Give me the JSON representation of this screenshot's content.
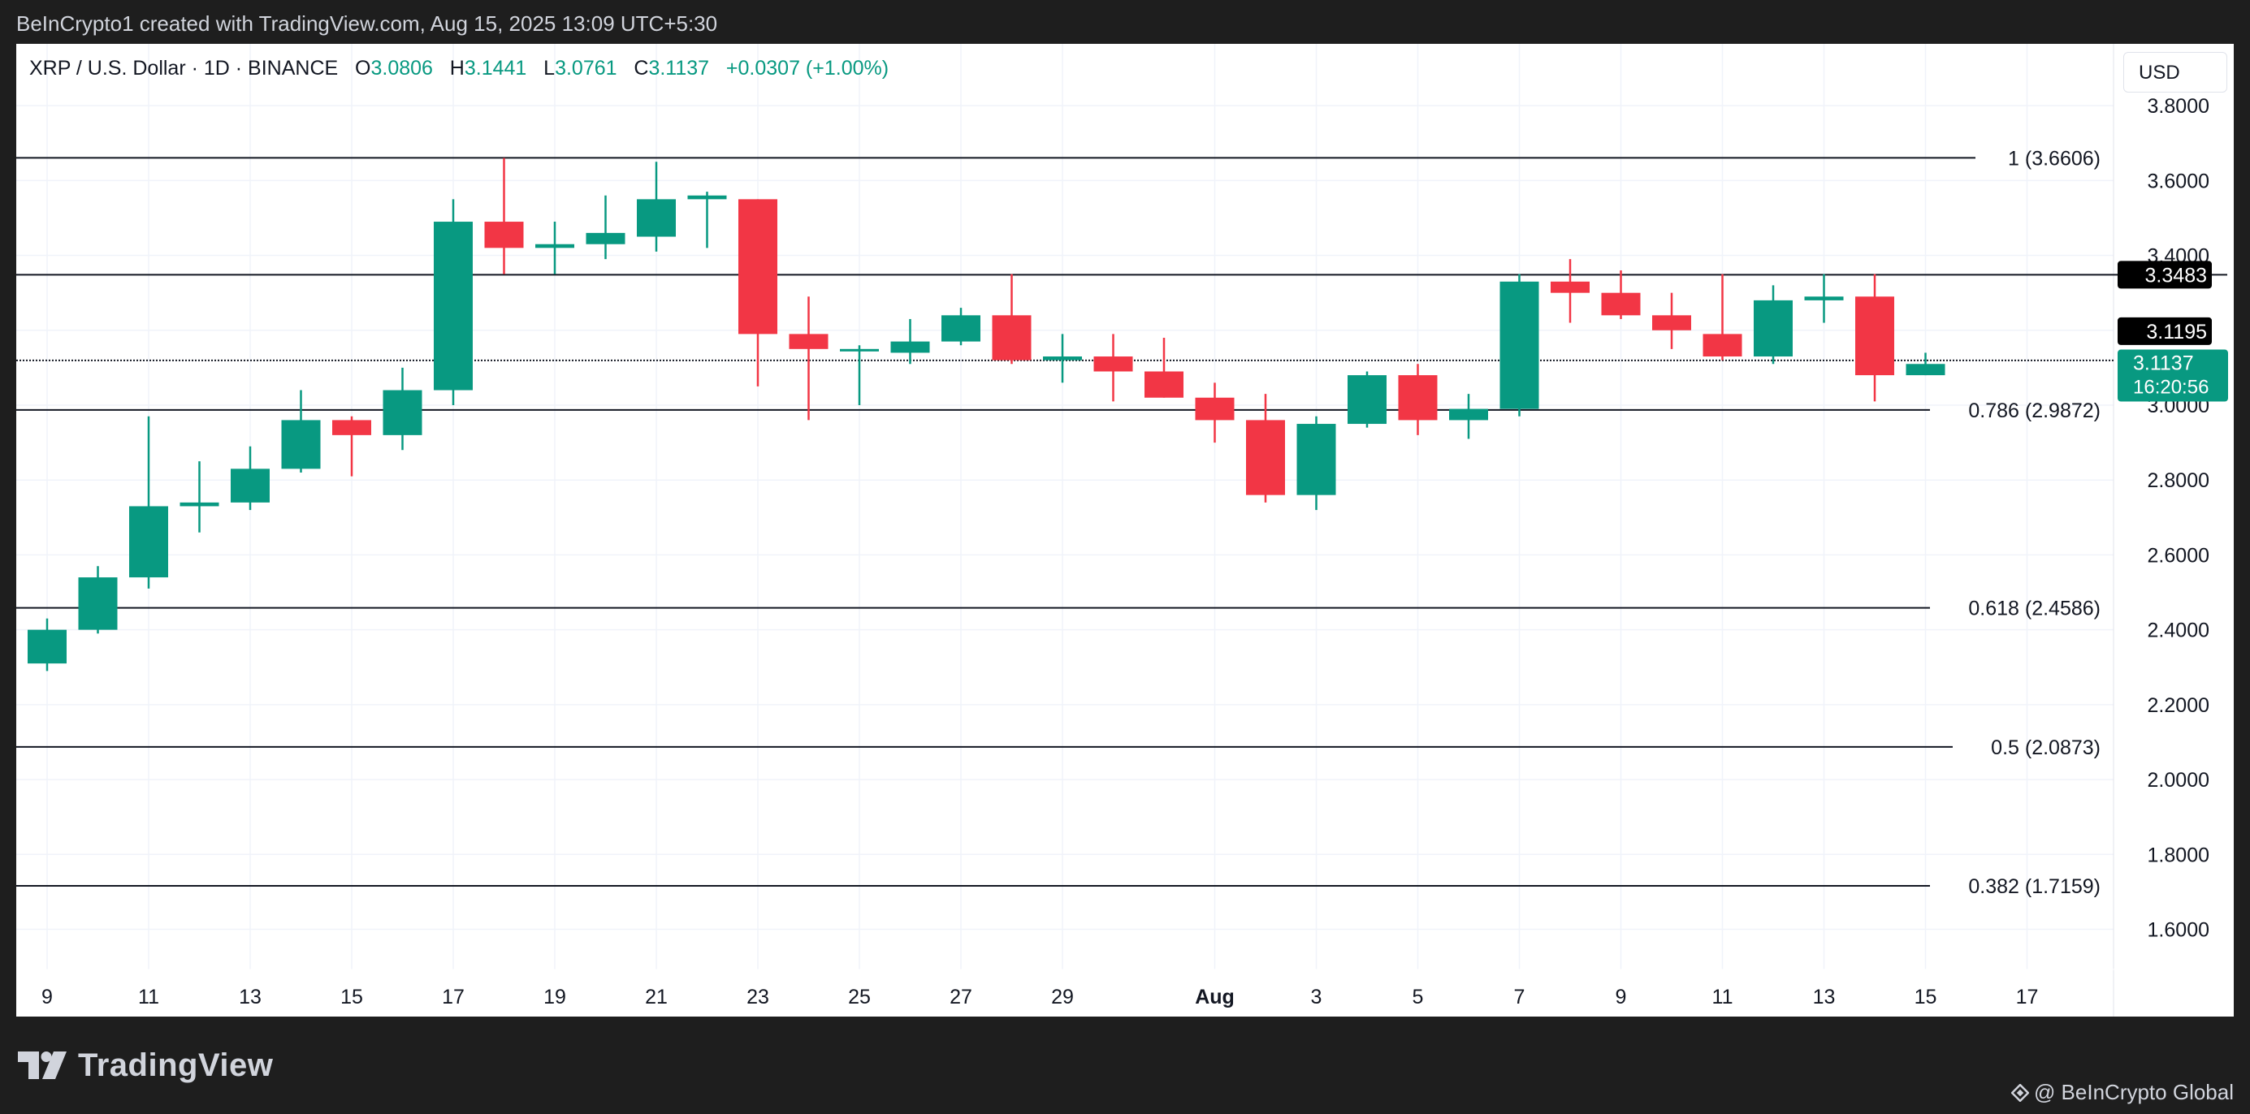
{
  "header": {
    "attribution": "BeInCrypto1 created with TradingView.com, Aug 15, 2025 13:09 UTC+5:30"
  },
  "legend": {
    "symbol": "XRP / U.S. Dollar · 1D · BINANCE",
    "open_key": "O",
    "open": "3.0806",
    "high_key": "H",
    "high": "3.1441",
    "low_key": "L",
    "low": "3.0761",
    "close_key": "C",
    "close": "3.1137",
    "change": "+0.0307 (+1.00%)"
  },
  "currency": "USD",
  "footer": {
    "brand": "TradingView",
    "credit": "@ BeInCrypto Global"
  },
  "colors": {
    "up": "#089981",
    "down": "#f23645",
    "level_line": "#131722",
    "grid": "#f0f3fa",
    "text": "#131722",
    "price_tag_bg": "#089981",
    "label_tag_bg": "#000000"
  },
  "chart_data": {
    "type": "candlestick",
    "y_axis": {
      "ylim": [
        1.51,
        3.9
      ],
      "ticks": [
        1.6,
        1.8,
        2.0,
        2.2,
        2.4,
        2.6,
        2.8,
        3.0,
        3.2,
        3.4,
        3.6,
        3.8
      ],
      "tick_labels": [
        "1.6000",
        "1.8000",
        "2.0000",
        "2.2000",
        "2.4000",
        "2.6000",
        "2.8000",
        "3.0000",
        "3.2000",
        "3.4000",
        "3.6000",
        "3.8000"
      ]
    },
    "x_axis": {
      "ticks": [
        {
          "index": 0,
          "label": "9"
        },
        {
          "index": 2,
          "label": "11"
        },
        {
          "index": 4,
          "label": "13"
        },
        {
          "index": 6,
          "label": "15"
        },
        {
          "index": 8,
          "label": "17"
        },
        {
          "index": 10,
          "label": "19"
        },
        {
          "index": 12,
          "label": "21"
        },
        {
          "index": 14,
          "label": "23"
        },
        {
          "index": 16,
          "label": "25"
        },
        {
          "index": 18,
          "label": "27"
        },
        {
          "index": 20,
          "label": "29"
        },
        {
          "index": 23,
          "label": "Aug"
        },
        {
          "index": 25,
          "label": "3"
        },
        {
          "index": 27,
          "label": "5"
        },
        {
          "index": 29,
          "label": "7"
        },
        {
          "index": 31,
          "label": "9"
        },
        {
          "index": 33,
          "label": "11"
        },
        {
          "index": 35,
          "label": "13"
        },
        {
          "index": 37,
          "label": "15"
        },
        {
          "index": 39,
          "label": "17"
        }
      ],
      "bold_labels": [
        "Aug"
      ]
    },
    "candles": [
      {
        "o": 2.31,
        "h": 2.43,
        "l": 2.29,
        "c": 2.4
      },
      {
        "o": 2.4,
        "h": 2.57,
        "l": 2.39,
        "c": 2.54
      },
      {
        "o": 2.54,
        "h": 2.97,
        "l": 2.51,
        "c": 2.73
      },
      {
        "o": 2.73,
        "h": 2.85,
        "l": 2.66,
        "c": 2.74
      },
      {
        "o": 2.74,
        "h": 2.89,
        "l": 2.72,
        "c": 2.83
      },
      {
        "o": 2.83,
        "h": 3.04,
        "l": 2.82,
        "c": 2.96
      },
      {
        "o": 2.96,
        "h": 2.97,
        "l": 2.81,
        "c": 2.92
      },
      {
        "o": 2.92,
        "h": 3.1,
        "l": 2.88,
        "c": 3.04
      },
      {
        "o": 3.04,
        "h": 3.55,
        "l": 3.0,
        "c": 3.49
      },
      {
        "o": 3.49,
        "h": 3.66,
        "l": 3.35,
        "c": 3.42
      },
      {
        "o": 3.42,
        "h": 3.49,
        "l": 3.35,
        "c": 3.43
      },
      {
        "o": 3.43,
        "h": 3.56,
        "l": 3.39,
        "c": 3.46
      },
      {
        "o": 3.45,
        "h": 3.65,
        "l": 3.41,
        "c": 3.55
      },
      {
        "o": 3.55,
        "h": 3.57,
        "l": 3.42,
        "c": 3.56
      },
      {
        "o": 3.55,
        "h": 3.55,
        "l": 3.05,
        "c": 3.19
      },
      {
        "o": 3.19,
        "h": 3.29,
        "l": 2.96,
        "c": 3.15
      },
      {
        "o": 3.15,
        "h": 3.16,
        "l": 3.0,
        "c": 3.15
      },
      {
        "o": 3.14,
        "h": 3.23,
        "l": 3.11,
        "c": 3.17
      },
      {
        "o": 3.17,
        "h": 3.26,
        "l": 3.16,
        "c": 3.24
      },
      {
        "o": 3.24,
        "h": 3.35,
        "l": 3.11,
        "c": 3.12
      },
      {
        "o": 3.12,
        "h": 3.19,
        "l": 3.06,
        "c": 3.13
      },
      {
        "o": 3.13,
        "h": 3.19,
        "l": 3.01,
        "c": 3.09
      },
      {
        "o": 3.09,
        "h": 3.18,
        "l": 3.02,
        "c": 3.02
      },
      {
        "o": 3.02,
        "h": 3.06,
        "l": 2.9,
        "c": 2.96
      },
      {
        "o": 2.96,
        "h": 3.03,
        "l": 2.74,
        "c": 2.76
      },
      {
        "o": 2.76,
        "h": 2.97,
        "l": 2.72,
        "c": 2.95
      },
      {
        "o": 2.95,
        "h": 3.09,
        "l": 2.94,
        "c": 3.08
      },
      {
        "o": 3.08,
        "h": 3.11,
        "l": 2.92,
        "c": 2.96
      },
      {
        "o": 2.96,
        "h": 3.03,
        "l": 2.91,
        "c": 2.99
      },
      {
        "o": 2.99,
        "h": 3.35,
        "l": 2.97,
        "c": 3.33
      },
      {
        "o": 3.33,
        "h": 3.39,
        "l": 3.22,
        "c": 3.3
      },
      {
        "o": 3.3,
        "h": 3.36,
        "l": 3.23,
        "c": 3.24
      },
      {
        "o": 3.24,
        "h": 3.3,
        "l": 3.15,
        "c": 3.2
      },
      {
        "o": 3.19,
        "h": 3.35,
        "l": 3.12,
        "c": 3.13
      },
      {
        "o": 3.13,
        "h": 3.32,
        "l": 3.11,
        "c": 3.28
      },
      {
        "o": 3.28,
        "h": 3.35,
        "l": 3.22,
        "c": 3.29
      },
      {
        "o": 3.29,
        "h": 3.35,
        "l": 3.01,
        "c": 3.08
      },
      {
        "o": 3.08,
        "h": 3.14,
        "l": 3.08,
        "c": 3.11
      }
    ],
    "fib_levels": [
      {
        "value": 3.6606,
        "label": "1 (3.6606)"
      },
      {
        "value": 2.9872,
        "label": "0.786 (2.9872)"
      },
      {
        "value": 2.4586,
        "label": "0.618 (2.4586)"
      },
      {
        "value": 2.0873,
        "label": "0.5 (2.0873)"
      },
      {
        "value": 1.7159,
        "label": "0.382 (1.7159)"
      }
    ],
    "horizontal_lines": [
      {
        "value": 3.3483,
        "tag": "3.3483"
      }
    ],
    "price_marker": {
      "value": 3.1195,
      "tag": "3.1195"
    },
    "last_price": {
      "value": 3.1137,
      "tag": "3.1137",
      "countdown": "16:20:56"
    }
  }
}
